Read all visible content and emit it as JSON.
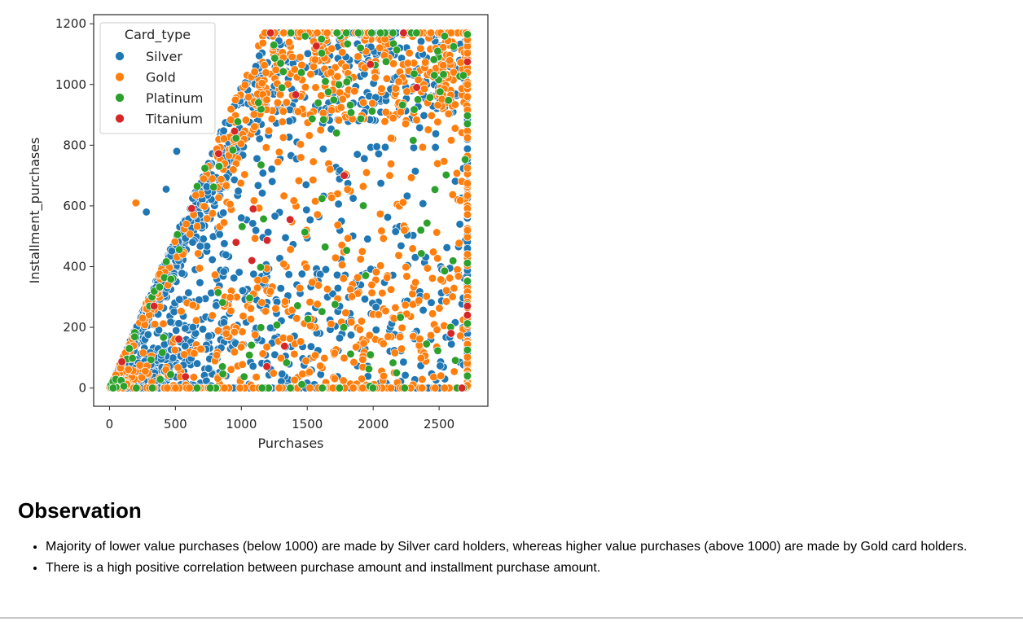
{
  "chart_data": {
    "type": "scatter",
    "xlabel": "Purchases",
    "ylabel": "Installment_purchases",
    "xlim": [
      -120,
      2870
    ],
    "ylim": [
      -60,
      1230
    ],
    "xticks": [
      0,
      500,
      1000,
      1500,
      2000,
      2500
    ],
    "yticks": [
      0,
      200,
      400,
      600,
      800,
      1000,
      1200
    ],
    "grid": false,
    "legend": {
      "title": "Card_type",
      "placement": "top-left"
    },
    "series": [
      {
        "name": "Silver",
        "color": "#1f77b4"
      },
      {
        "name": "Gold",
        "color": "#ff7f0e"
      },
      {
        "name": "Platinum",
        "color": "#2ca02c"
      },
      {
        "name": "Titanium",
        "color": "#d62728"
      }
    ],
    "notes": {
      "x_cap": 2715,
      "y_cap": 1170,
      "approximate": true
    },
    "outliers": [
      {
        "series": "Silver",
        "x": 510,
        "y": 780
      },
      {
        "series": "Silver",
        "x": 430,
        "y": 655
      },
      {
        "series": "Silver",
        "x": 280,
        "y": 580
      },
      {
        "series": "Gold",
        "x": 200,
        "y": 610
      },
      {
        "series": "Gold",
        "x": 1790,
        "y": 705
      },
      {
        "series": "Titanium",
        "x": 1780,
        "y": 700
      },
      {
        "series": "Titanium",
        "x": 2330,
        "y": 990
      },
      {
        "series": "Titanium",
        "x": 1370,
        "y": 555
      },
      {
        "series": "Titanium",
        "x": 2715,
        "y": 270
      },
      {
        "series": "Titanium",
        "x": 2715,
        "y": 240
      },
      {
        "series": "Titanium",
        "x": 2590,
        "y": 180
      },
      {
        "series": "Titanium",
        "x": 1090,
        "y": 590
      },
      {
        "series": "Titanium",
        "x": 1080,
        "y": 420
      },
      {
        "series": "Titanium",
        "x": 960,
        "y": 480
      }
    ]
  },
  "observation": {
    "heading": "Observation",
    "points": [
      "Majority of lower value purchases (below 1000) are made by Silver card holders, whereas higher value purchases (above 1000) are made by Gold card holders.",
      "There is a high positive correlation between purchase amount and installment purchase amount."
    ]
  }
}
